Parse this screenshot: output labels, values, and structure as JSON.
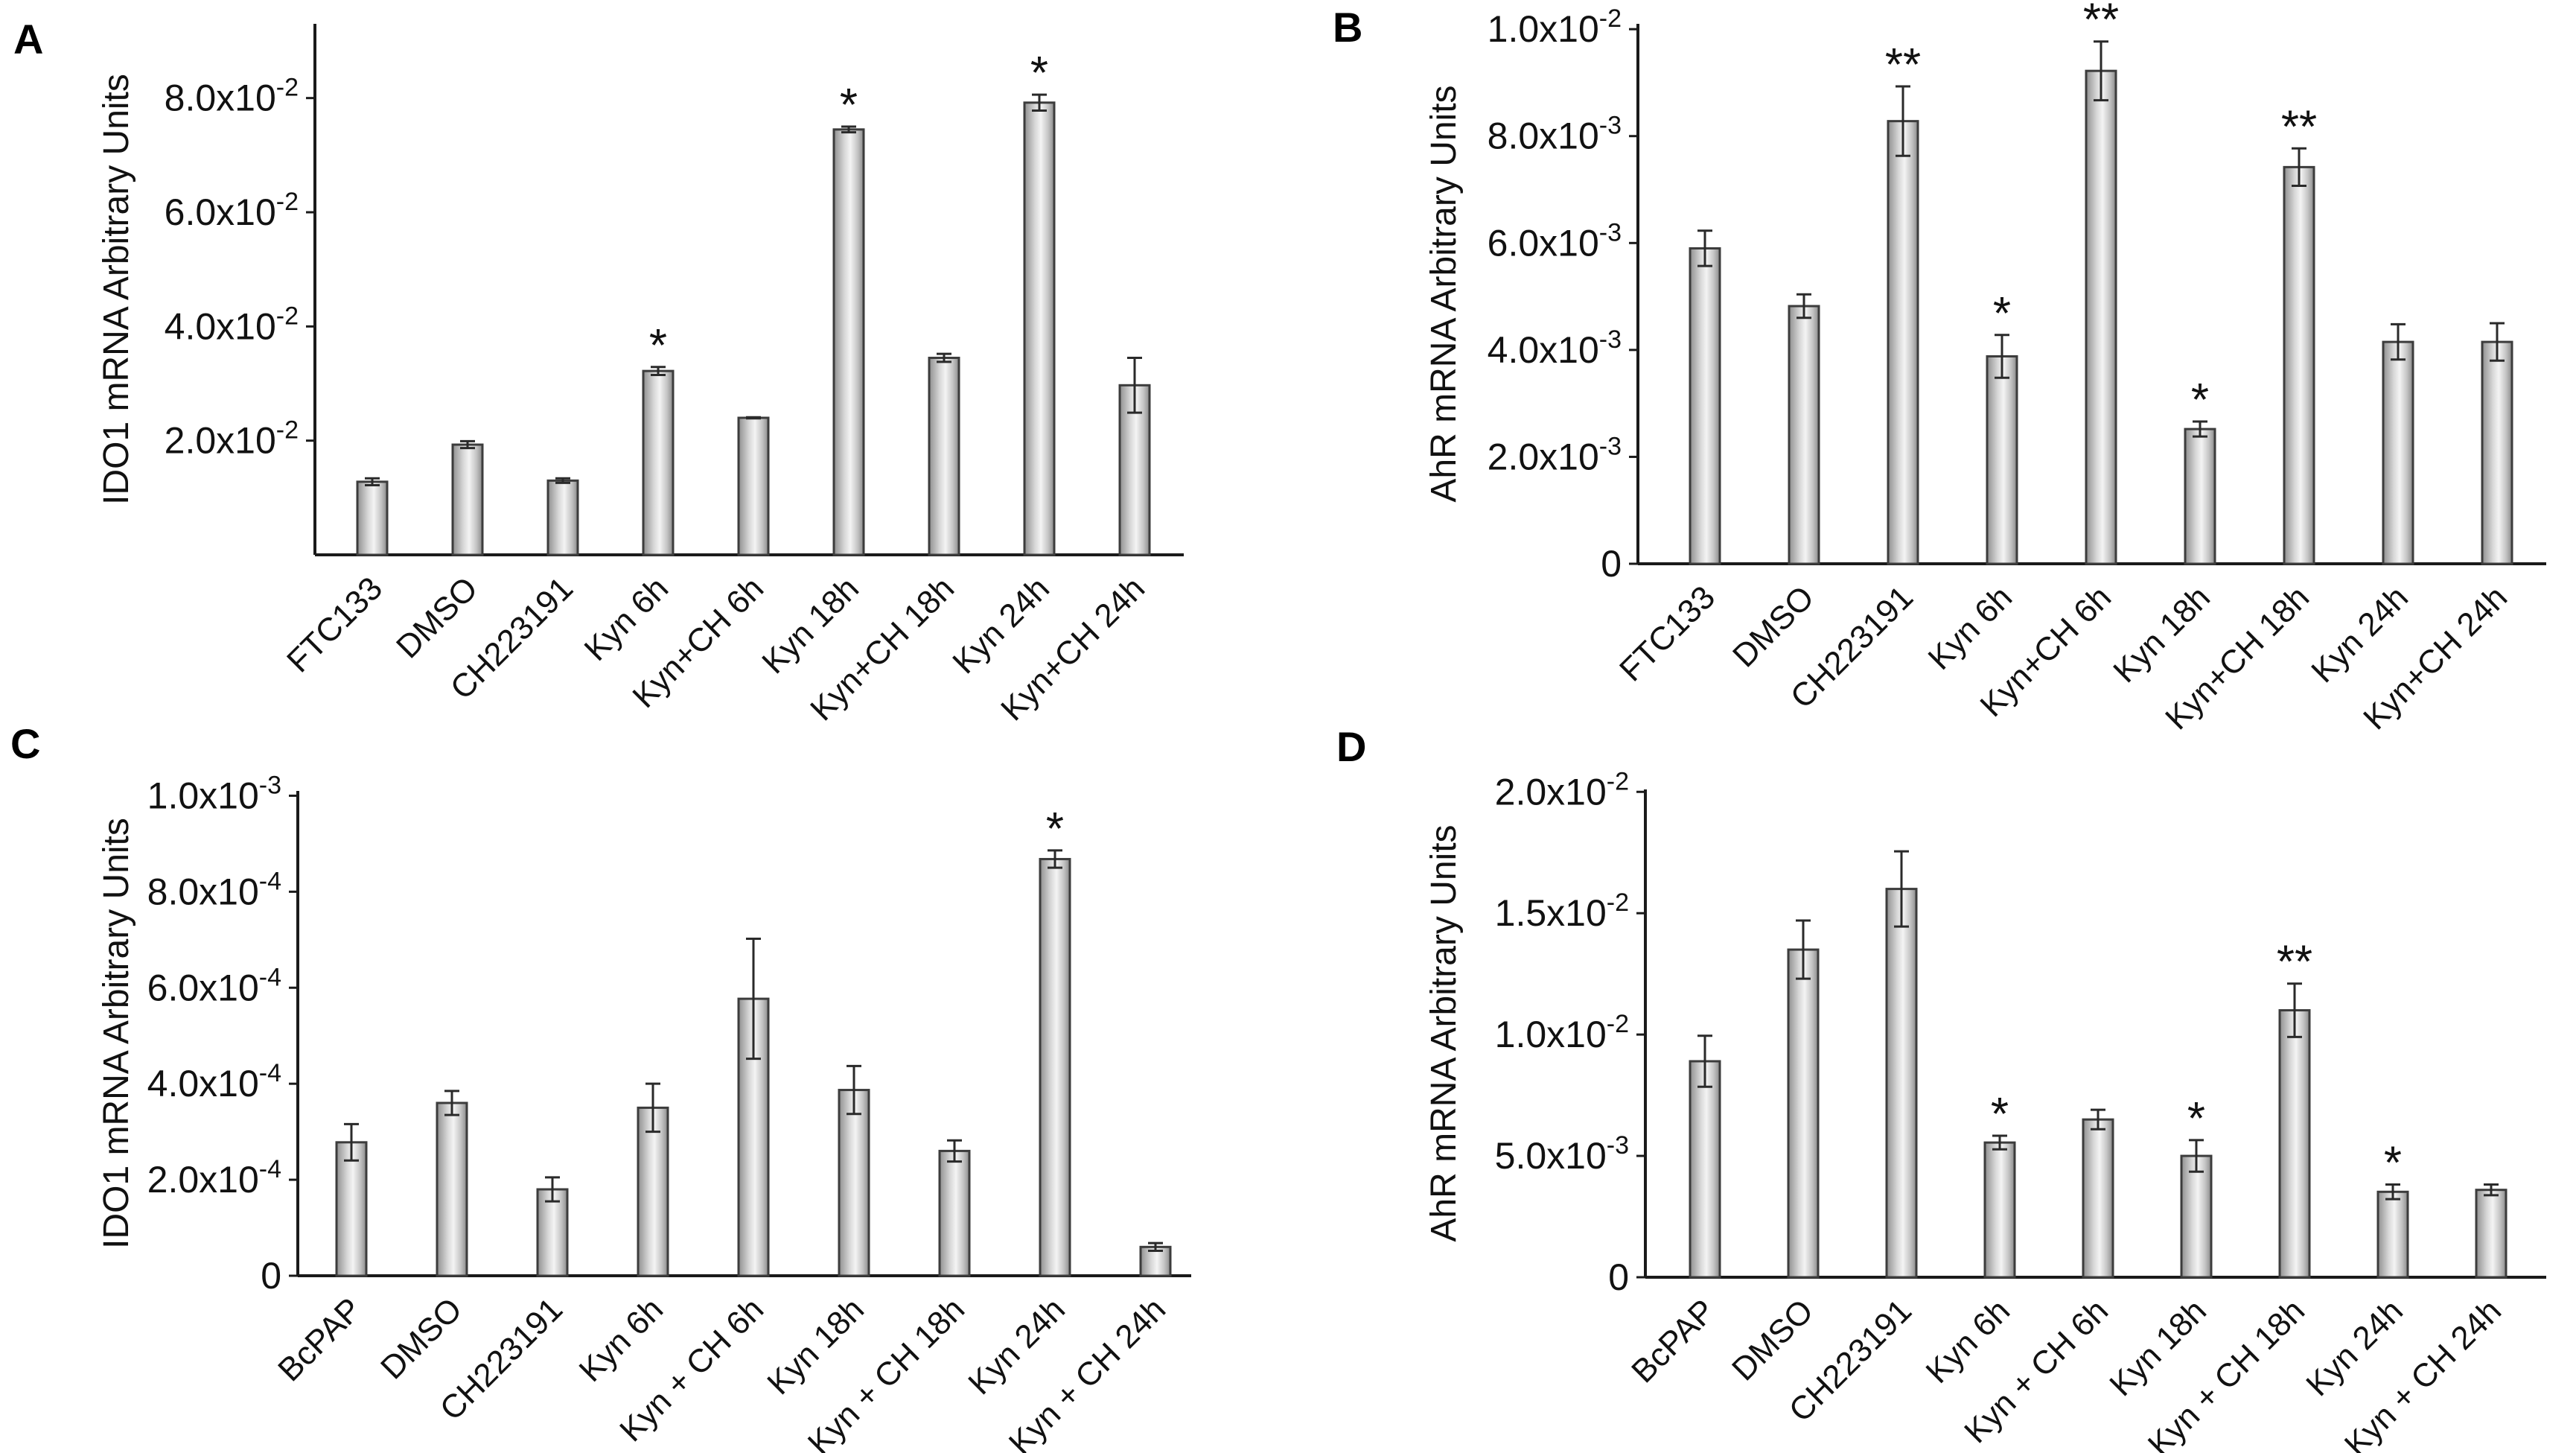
{
  "chart_data": [
    {
      "type": "bar",
      "panel": "A",
      "ylabel": "IDO1 mRNA Arbitrary Units",
      "categories": [
        "FTC133",
        "DMSO",
        "CH223191",
        "Kyn 6h",
        "Kyn+CH 6h",
        "Kyn 18h",
        "Kyn+CH 18h",
        "Kyn 24h",
        "Kyn+CH 24h"
      ],
      "values": [
        0.0128,
        0.0193,
        0.013,
        0.0322,
        0.024,
        0.0745,
        0.0345,
        0.0792,
        0.0297
      ],
      "errors": [
        0.0006,
        0.0006,
        0.0004,
        0.0007,
        0.0001,
        0.0005,
        0.0007,
        0.0014,
        0.0048
      ],
      "significance": [
        "",
        "",
        "",
        "*",
        "",
        "*",
        "",
        "*",
        ""
      ],
      "ylim": [
        0,
        0.093
      ],
      "yticks": [
        0.02,
        0.04,
        0.06,
        0.08
      ],
      "ytick_base": [
        "2.0x10",
        "4.0x10",
        "6.0x10",
        "8.0x10"
      ],
      "ytick_exp": [
        "-2",
        "-2",
        "-2",
        "-2"
      ]
    },
    {
      "type": "bar",
      "panel": "B",
      "ylabel": "AhR mRNA Arbitrary Units",
      "categories": [
        "FTC133",
        "DMSO",
        "CH223191",
        "Kyn 6h",
        "Kyn+CH 6h",
        "Kyn 18h",
        "Kyn+CH 18h",
        "Kyn 24h",
        "Kyn+CH 24h"
      ],
      "values": [
        0.0059,
        0.00482,
        0.00828,
        0.00388,
        0.00922,
        0.00252,
        0.00742,
        0.00415,
        0.00415
      ],
      "errors": [
        0.00033,
        0.00022,
        0.00065,
        0.0004,
        0.00055,
        0.00014,
        0.00035,
        0.00033,
        0.00035
      ],
      "significance": [
        "",
        "",
        "**",
        "*",
        "**",
        "*",
        "**",
        "",
        ""
      ],
      "ylim": [
        0,
        0.0101
      ],
      "yticks": [
        0,
        0.002,
        0.004,
        0.006,
        0.008,
        0.01
      ],
      "ytick_base": [
        "0",
        "2.0x10",
        "4.0x10",
        "6.0x10",
        "8.0x10",
        "1.0x10"
      ],
      "ytick_exp": [
        "",
        "-3",
        "-3",
        "-3",
        "-3",
        "-2"
      ]
    },
    {
      "type": "bar",
      "panel": "C",
      "ylabel": "IDO1 mRNA Arbitrary Units",
      "categories": [
        "BcPAP",
        "DMSO",
        "CH223191",
        "Kyn 6h",
        "Kyn + CH 6h",
        "Kyn 18h",
        "Kyn + CH 18h",
        "Kyn 24h",
        "Kyn + CH 24h"
      ],
      "values": [
        0.000278,
        0.00036,
        0.00018,
        0.00035,
        0.000577,
        0.000387,
        0.00026,
        0.000868,
        6e-05
      ],
      "errors": [
        3.8e-05,
        2.5e-05,
        2.5e-05,
        5e-05,
        0.000125,
        5e-05,
        2.2e-05,
        1.8e-05,
        8e-06
      ],
      "significance": [
        "",
        "",
        "",
        "",
        "",
        "",
        "",
        "*",
        ""
      ],
      "ylim": [
        0,
        0.00101
      ],
      "yticks": [
        0,
        0.0002,
        0.0004,
        0.0006,
        0.0008,
        0.001
      ],
      "ytick_base": [
        "0",
        "2.0x10",
        "4.0x10",
        "6.0x10",
        "8.0x10",
        "1.0x10"
      ],
      "ytick_exp": [
        "",
        "-4",
        "-4",
        "-4",
        "-4",
        "-3"
      ]
    },
    {
      "type": "bar",
      "panel": "D",
      "ylabel": "AhR mRNA Arbitrary Units",
      "categories": [
        "BcPAP",
        "DMSO",
        "CH223191",
        "Kyn 6h",
        "Kyn + CH 6h",
        "Kyn 18h",
        "Kyn + CH 18h",
        "Kyn 24h",
        "Kyn + CH 24h"
      ],
      "values": [
        0.0089,
        0.0135,
        0.016,
        0.00555,
        0.0065,
        0.005,
        0.011,
        0.00352,
        0.0036
      ],
      "errors": [
        0.00105,
        0.0012,
        0.00155,
        0.00028,
        0.0004,
        0.00065,
        0.0011,
        0.0003,
        0.00022
      ],
      "significance": [
        "",
        "",
        "",
        "*",
        "",
        "*",
        "**",
        "*",
        ""
      ],
      "ylim": [
        0,
        0.0201
      ],
      "yticks": [
        0,
        0.005,
        0.01,
        0.015,
        0.02
      ],
      "ytick_base": [
        "0",
        "5.0x10",
        "1.0x10",
        "1.5x10",
        "2.0x10"
      ],
      "ytick_exp": [
        "",
        "-3",
        "-2",
        "-2",
        "-2"
      ]
    }
  ]
}
